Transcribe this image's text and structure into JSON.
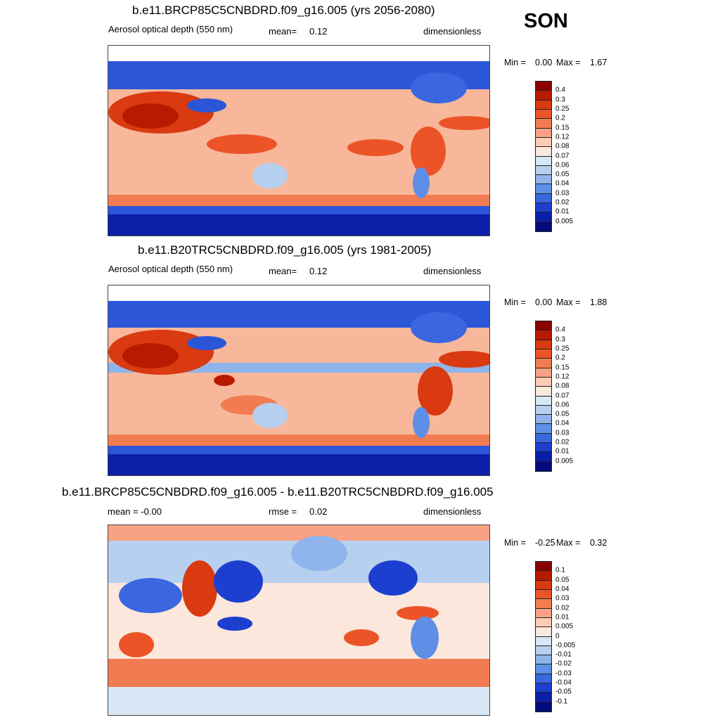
{
  "season": "SON",
  "panels": [
    {
      "title": "b.e11.BRCP85C5CNBDRD.f09_g16.005 (yrs 2056-2080)",
      "left_label": "Aerosol optical depth (550 nm)",
      "stat_label": "mean=",
      "stat_value": "0.12",
      "units": "dimensionless",
      "min_label": "Min =",
      "min_value": "0.00",
      "max_label": "Max =",
      "max_value": "1.67",
      "colorbar": {
        "labels": [
          "0.4",
          "0.3",
          "0.25",
          "0.2",
          "0.15",
          "0.12",
          "0.08",
          "0.07",
          "0.06",
          "0.05",
          "0.04",
          "0.03",
          "0.02",
          "0.01",
          "0.005"
        ],
        "colors": [
          "#8b0000",
          "#b81a00",
          "#d93a0f",
          "#ec5428",
          "#f27c52",
          "#f7a282",
          "#fbccb4",
          "#fbe7dc",
          "#d9e8f7",
          "#b7d0f0",
          "#8eb4eb",
          "#5f8ee6",
          "#3a67e0",
          "#1d3fcf",
          "#0a1ea8",
          "#020c7a"
        ]
      }
    },
    {
      "title": "b.e11.B20TRC5CNBDRD.f09_g16.005 (yrs 1981-2005)",
      "left_label": "Aerosol optical depth (550 nm)",
      "stat_label": "mean=",
      "stat_value": "0.12",
      "units": "dimensionless",
      "min_label": "Min =",
      "min_value": "0.00",
      "max_label": "Max =",
      "max_value": "1.88",
      "colorbar": {
        "labels": [
          "0.4",
          "0.3",
          "0.25",
          "0.2",
          "0.15",
          "0.12",
          "0.08",
          "0.07",
          "0.06",
          "0.05",
          "0.04",
          "0.03",
          "0.02",
          "0.01",
          "0.005"
        ],
        "colors": [
          "#8b0000",
          "#b81a00",
          "#d93a0f",
          "#ec5428",
          "#f27c52",
          "#f7a282",
          "#fbccb4",
          "#fbe7dc",
          "#d9e8f7",
          "#b7d0f0",
          "#8eb4eb",
          "#5f8ee6",
          "#3a67e0",
          "#1d3fcf",
          "#0a1ea8",
          "#020c7a"
        ]
      }
    },
    {
      "title": "b.e11.BRCP85C5CNBDRD.f09_g16.005 - b.e11.B20TRC5CNBDRD.f09_g16.005",
      "left_label": "mean =  -0.00",
      "stat_label": "rmse =",
      "stat_value": "0.02",
      "units": "dimensionless",
      "min_label": "Min =",
      "min_value": "-0.25",
      "max_label": "Max =",
      "max_value": "0.32",
      "colorbar": {
        "labels": [
          "0.1",
          "0.05",
          "0.04",
          "0.03",
          "0.02",
          "0.01",
          "0.005",
          "0",
          "-0.005",
          "-0.01",
          "-0.02",
          "-0.03",
          "-0.04",
          "-0.05",
          "-0.1"
        ],
        "colors": [
          "#8b0000",
          "#b81a00",
          "#d93a0f",
          "#ec5428",
          "#f27c52",
          "#f7a282",
          "#fbccb4",
          "#fbe7dc",
          "#d9e8f7",
          "#b7d0f0",
          "#8eb4eb",
          "#5f8ee6",
          "#3a67e0",
          "#1d3fcf",
          "#0a1ea8",
          "#020c7a"
        ]
      }
    }
  ],
  "chart_data": [
    {
      "type": "heatmap",
      "title": "b.e11.BRCP85C5CNBDRD.f09_g16.005 (yrs 2056-2080)",
      "subtitle": "Aerosol optical depth (550 nm)",
      "mean": 0.12,
      "units": "dimensionless",
      "min": 0.0,
      "max": 1.67,
      "levels": [
        0.005,
        0.01,
        0.02,
        0.03,
        0.04,
        0.05,
        0.06,
        0.07,
        0.08,
        0.12,
        0.15,
        0.2,
        0.25,
        0.3,
        0.4
      ]
    },
    {
      "type": "heatmap",
      "title": "b.e11.B20TRC5CNBDRD.f09_g16.005 (yrs 1981-2005)",
      "subtitle": "Aerosol optical depth (550 nm)",
      "mean": 0.12,
      "units": "dimensionless",
      "min": 0.0,
      "max": 1.88,
      "levels": [
        0.005,
        0.01,
        0.02,
        0.03,
        0.04,
        0.05,
        0.06,
        0.07,
        0.08,
        0.12,
        0.15,
        0.2,
        0.25,
        0.3,
        0.4
      ]
    },
    {
      "type": "heatmap",
      "title": "b.e11.BRCP85C5CNBDRD.f09_g16.005 - b.e11.B20TRC5CNBDRD.f09_g16.005",
      "mean": -0.0,
      "rmse": 0.02,
      "units": "dimensionless",
      "min": -0.25,
      "max": 0.32,
      "levels": [
        -0.1,
        -0.05,
        -0.04,
        -0.03,
        -0.02,
        -0.01,
        -0.005,
        0,
        0.005,
        0.01,
        0.02,
        0.03,
        0.04,
        0.05,
        0.1
      ]
    }
  ]
}
